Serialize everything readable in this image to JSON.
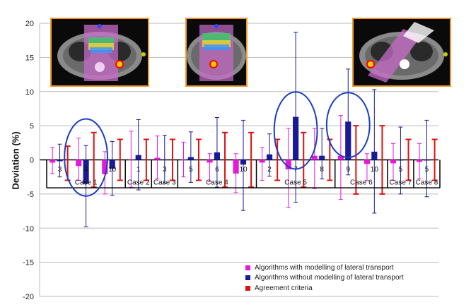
{
  "chart_data": {
    "type": "bar",
    "ylabel": "Deviation (%)",
    "ylim": [
      -20,
      20
    ],
    "yticks": [
      -20,
      -15,
      -10,
      -5,
      0,
      5,
      10,
      15,
      20
    ],
    "grid": true,
    "categories": [
      "3",
      "4",
      "10",
      "1",
      "3",
      "5",
      "6",
      "10",
      "2",
      "7",
      "8",
      "9",
      "10",
      "5",
      "5"
    ],
    "cases": [
      {
        "label": "Case 1",
        "count": 3
      },
      {
        "label": "Case 2",
        "count": 1
      },
      {
        "label": "Case 3",
        "count": 1
      },
      {
        "label": "Case 4",
        "count": 3
      },
      {
        "label": "Case 5",
        "count": 3
      },
      {
        "label": "Case 6",
        "count": 2
      },
      {
        "label": "Case 7",
        "count": 1
      },
      {
        "label": "Case 8",
        "count": 1
      }
    ],
    "series": [
      {
        "name": "Algorithms with modelling of lateral transport",
        "color": "#e619d6",
        "values": [
          -0.4,
          -0.9,
          -2.1,
          0.0,
          0.3,
          0.0,
          -0.4,
          -2.0,
          -0.4,
          -1.4,
          0.6,
          0.6,
          -0.6,
          -0.5,
          -0.3
        ],
        "err_low": [
          -2.0,
          -3.0,
          -5.0,
          -4.0,
          -2.8,
          -2.5,
          -3.2,
          -4.8,
          -3.0,
          -7.0,
          -4.2,
          -5.8,
          -3.0,
          -3.0,
          -2.8
        ],
        "err_high": [
          1.8,
          3.2,
          1.2,
          4.2,
          3.5,
          2.6,
          0.9,
          0.9,
          1.8,
          4.6,
          4.6,
          6.5,
          0.9,
          2.4,
          2.4
        ]
      },
      {
        "name": "Algorithms without modelling of lateral transport",
        "color": "#1a1a99",
        "values": [
          -0.2,
          -3.5,
          -1.3,
          0.7,
          0.0,
          0.4,
          1.1,
          -0.7,
          0.8,
          6.3,
          0.6,
          5.6,
          1.2,
          -0.1,
          -0.1
        ],
        "err_low": [
          -2.5,
          -9.8,
          -5.2,
          -4.4,
          -3.4,
          -3.3,
          -4.0,
          -7.4,
          -2.4,
          -6.2,
          -2.8,
          -2.2,
          -7.8,
          -5.0,
          -5.4
        ],
        "err_high": [
          2.3,
          2.1,
          2.7,
          5.9,
          3.6,
          4.1,
          6.2,
          5.8,
          3.8,
          18.7,
          4.6,
          13.3,
          10.3,
          4.8,
          5.8
        ]
      },
      {
        "name": "Agreement criteria",
        "color": "#dd1111",
        "err_low": [
          -3,
          -4,
          -3,
          -3,
          -3,
          -3,
          -4,
          -4,
          -3,
          -4,
          -3,
          -5,
          -5,
          -3,
          -3
        ],
        "err_high": [
          2,
          4,
          3,
          3,
          3,
          3,
          4,
          4,
          3,
          4,
          3,
          5,
          5,
          3,
          3
        ]
      }
    ],
    "highlighted": [
      "4",
      "7",
      "9"
    ]
  }
}
